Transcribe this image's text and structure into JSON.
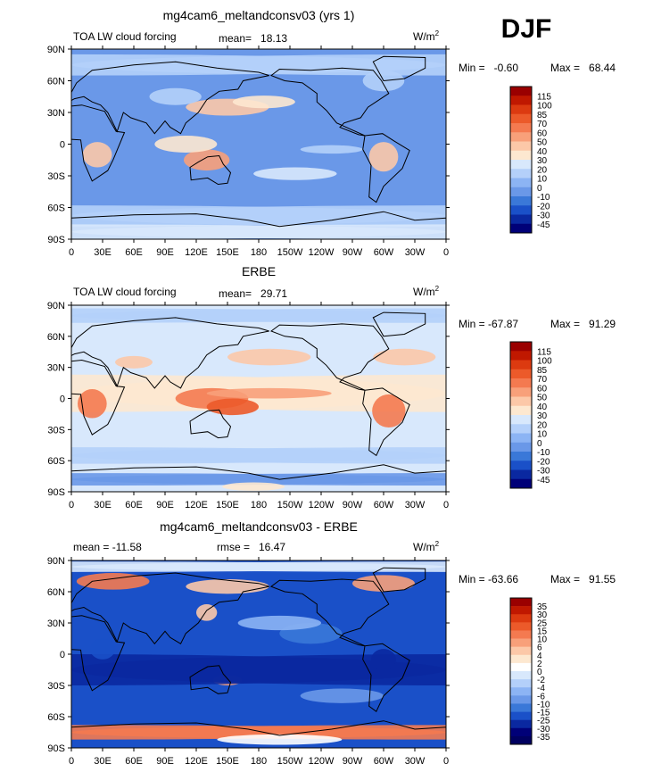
{
  "season": "DJF",
  "colors": {
    "land": "#3a78d8",
    "ocean_bg": "#6a98e8",
    "coast": "#000000"
  },
  "chart_data": [
    {
      "type": "heatmap",
      "title": "mg4cam6_meltandconsv03 (yrs 1)",
      "left_label": "TOA LW cloud forcing",
      "mean_text": "mean=   18.13",
      "rmse_text": "",
      "units_main": "W/m",
      "units_sup": "2",
      "min_text": "Min =   -0.60",
      "max_text": "Max =   68.44",
      "xticks": [
        "0",
        "30E",
        "60E",
        "90E",
        "120E",
        "150E",
        "180",
        "150W",
        "120W",
        "90W",
        "60W",
        "30W",
        "0"
      ],
      "yticks": [
        "90N",
        "60N",
        "30N",
        "0",
        "30S",
        "60S",
        "90S"
      ],
      "colorbar_labels": [
        "115",
        "100",
        "85",
        "70",
        "60",
        "50",
        "40",
        "30",
        "20",
        "10",
        "0",
        "-10",
        "-20",
        "-30",
        "-45"
      ],
      "colorbar_colors": [
        "#9a0000",
        "#c01800",
        "#dc3a10",
        "#ec5a2a",
        "#f47a50",
        "#f8a07a",
        "#fcc8a8",
        "#fde8d0",
        "#d8e8fc",
        "#b4d0fa",
        "#8cb4f4",
        "#6a98e8",
        "#3a78d8",
        "#1a50c8",
        "#0a28a0",
        "#000078"
      ],
      "field": {
        "bg": 11,
        "blobs": [
          {
            "lon": 0,
            "lat": 75,
            "rx": 360,
            "ry": 10,
            "c": 9
          },
          {
            "lon": 0,
            "lat": -68,
            "rx": 360,
            "ry": 10,
            "c": 9
          },
          {
            "lon": 0,
            "lat": -83,
            "rx": 360,
            "ry": 7,
            "c": 8
          },
          {
            "lon": 150,
            "lat": 35,
            "rx": 40,
            "ry": 8,
            "c": 6
          },
          {
            "lon": 185,
            "lat": 40,
            "rx": 30,
            "ry": 6,
            "c": 7
          },
          {
            "lon": 130,
            "lat": -15,
            "rx": 22,
            "ry": 10,
            "c": 5
          },
          {
            "lon": 110,
            "lat": 0,
            "rx": 30,
            "ry": 8,
            "c": 7
          },
          {
            "lon": 25,
            "lat": -10,
            "rx": 14,
            "ry": 12,
            "c": 6
          },
          {
            "lon": 300,
            "lat": -12,
            "rx": 14,
            "ry": 14,
            "c": 6
          },
          {
            "lon": 215,
            "lat": -28,
            "rx": 40,
            "ry": 6,
            "c": 8
          },
          {
            "lon": 250,
            "lat": -5,
            "rx": 30,
            "ry": 4,
            "c": 9
          },
          {
            "lon": 100,
            "lat": 45,
            "rx": 25,
            "ry": 8,
            "c": 9
          },
          {
            "lon": 300,
            "lat": 60,
            "rx": 20,
            "ry": 10,
            "c": 9
          }
        ]
      }
    },
    {
      "type": "heatmap",
      "title": "ERBE",
      "left_label": "TOA LW cloud forcing",
      "mean_text": "mean=   29.71",
      "rmse_text": "",
      "units_main": "W/m",
      "units_sup": "2",
      "min_text": "Min = -67.87",
      "max_text": "Max =   91.29",
      "xticks": [
        "0",
        "30E",
        "60E",
        "90E",
        "120E",
        "150E",
        "180",
        "150W",
        "120W",
        "90W",
        "60W",
        "30W",
        "0"
      ],
      "yticks": [
        "90N",
        "60N",
        "30N",
        "0",
        "30S",
        "60S",
        "90S"
      ],
      "colorbar_labels": [
        "115",
        "100",
        "85",
        "70",
        "60",
        "50",
        "40",
        "30",
        "20",
        "10",
        "0",
        "-10",
        "-20",
        "-30",
        "-45"
      ],
      "colorbar_colors": [
        "#9a0000",
        "#c01800",
        "#dc3a10",
        "#ec5a2a",
        "#f47a50",
        "#f8a07a",
        "#fcc8a8",
        "#fde8d0",
        "#d8e8fc",
        "#b4d0fa",
        "#8cb4f4",
        "#6a98e8",
        "#3a78d8",
        "#1a50c8",
        "#0a28a0",
        "#000078"
      ],
      "field": {
        "bg": 8,
        "blobs": [
          {
            "lon": 0,
            "lat": 5,
            "rx": 360,
            "ry": 18,
            "c": 7
          },
          {
            "lon": 135,
            "lat": 0,
            "rx": 35,
            "ry": 10,
            "c": 4
          },
          {
            "lon": 155,
            "lat": -8,
            "rx": 25,
            "ry": 8,
            "c": 3
          },
          {
            "lon": 190,
            "lat": 5,
            "rx": 60,
            "ry": 5,
            "c": 5
          },
          {
            "lon": 20,
            "lat": -5,
            "rx": 14,
            "ry": 14,
            "c": 4
          },
          {
            "lon": 305,
            "lat": -12,
            "rx": 16,
            "ry": 16,
            "c": 4
          },
          {
            "lon": 60,
            "lat": 35,
            "rx": 18,
            "ry": 6,
            "c": 6
          },
          {
            "lon": 190,
            "lat": 40,
            "rx": 40,
            "ry": 8,
            "c": 6
          },
          {
            "lon": 320,
            "lat": 40,
            "rx": 30,
            "ry": 8,
            "c": 6
          },
          {
            "lon": 0,
            "lat": -55,
            "rx": 360,
            "ry": 8,
            "c": 9
          },
          {
            "lon": 0,
            "lat": -78,
            "rx": 360,
            "ry": 6,
            "c": 11
          },
          {
            "lon": 175,
            "lat": -85,
            "rx": 30,
            "ry": 4,
            "c": 7
          },
          {
            "lon": 0,
            "lat": 80,
            "rx": 360,
            "ry": 7,
            "c": 9
          },
          {
            "lon": 100,
            "lat": 55,
            "rx": 40,
            "ry": 8,
            "c": 8
          }
        ]
      }
    },
    {
      "type": "heatmap",
      "title": "mg4cam6_meltandconsv03 - ERBE",
      "left_label": "mean = -11.58",
      "mean_text": "",
      "rmse_text": "rmse =   16.47",
      "units_main": "W/m",
      "units_sup": "2",
      "min_text": "Min = -63.66",
      "max_text": "Max =   91.55",
      "xticks": [
        "0",
        "30E",
        "60E",
        "90E",
        "120E",
        "150E",
        "180",
        "150W",
        "120W",
        "90W",
        "60W",
        "30W",
        "0"
      ],
      "yticks": [
        "90N",
        "60N",
        "30N",
        "0",
        "30S",
        "60S",
        "90S"
      ],
      "colorbar_labels": [
        "35",
        "30",
        "25",
        "15",
        "10",
        "6",
        "4",
        "2",
        "0",
        "-2",
        "-4",
        "-6",
        "-10",
        "-15",
        "-25",
        "-30",
        "-35"
      ],
      "colorbar_colors": [
        "#9a0000",
        "#c01800",
        "#dc3a10",
        "#ec5a2a",
        "#f47a50",
        "#f8a07a",
        "#fcc8a8",
        "#fde8d0",
        "#ffffff",
        "#d8e8fc",
        "#b4d0fa",
        "#8cb4f4",
        "#6a98e8",
        "#3a78d8",
        "#1a50c8",
        "#0a28a0",
        "#000078",
        "#000060"
      ],
      "field": {
        "bg": 14,
        "blobs": [
          {
            "lon": 0,
            "lat": 84,
            "rx": 360,
            "ry": 5,
            "c": 9
          },
          {
            "lon": 40,
            "lat": 70,
            "rx": 35,
            "ry": 8,
            "c": 4
          },
          {
            "lon": 150,
            "lat": 65,
            "rx": 40,
            "ry": 7,
            "c": 6
          },
          {
            "lon": 300,
            "lat": 68,
            "rx": 30,
            "ry": 8,
            "c": 5
          },
          {
            "lon": 0,
            "lat": -75,
            "rx": 360,
            "ry": 7,
            "c": 4
          },
          {
            "lon": 200,
            "lat": -82,
            "rx": 60,
            "ry": 5,
            "c": 8
          },
          {
            "lon": 150,
            "lat": -25,
            "rx": 14,
            "ry": 5,
            "c": 5
          },
          {
            "lon": 130,
            "lat": 40,
            "rx": 10,
            "ry": 8,
            "c": 6
          },
          {
            "lon": 0,
            "lat": -15,
            "rx": 360,
            "ry": 15,
            "c": 15
          },
          {
            "lon": 230,
            "lat": 20,
            "rx": 30,
            "ry": 10,
            "c": 13
          },
          {
            "lon": 200,
            "lat": 30,
            "rx": 40,
            "ry": 7,
            "c": 11
          },
          {
            "lon": 260,
            "lat": -40,
            "rx": 40,
            "ry": 7,
            "c": 12
          },
          {
            "lon": 30,
            "lat": 5,
            "rx": 12,
            "ry": 10,
            "c": 14
          },
          {
            "lon": 300,
            "lat": -5,
            "rx": 12,
            "ry": 10,
            "c": 15
          }
        ]
      }
    }
  ]
}
